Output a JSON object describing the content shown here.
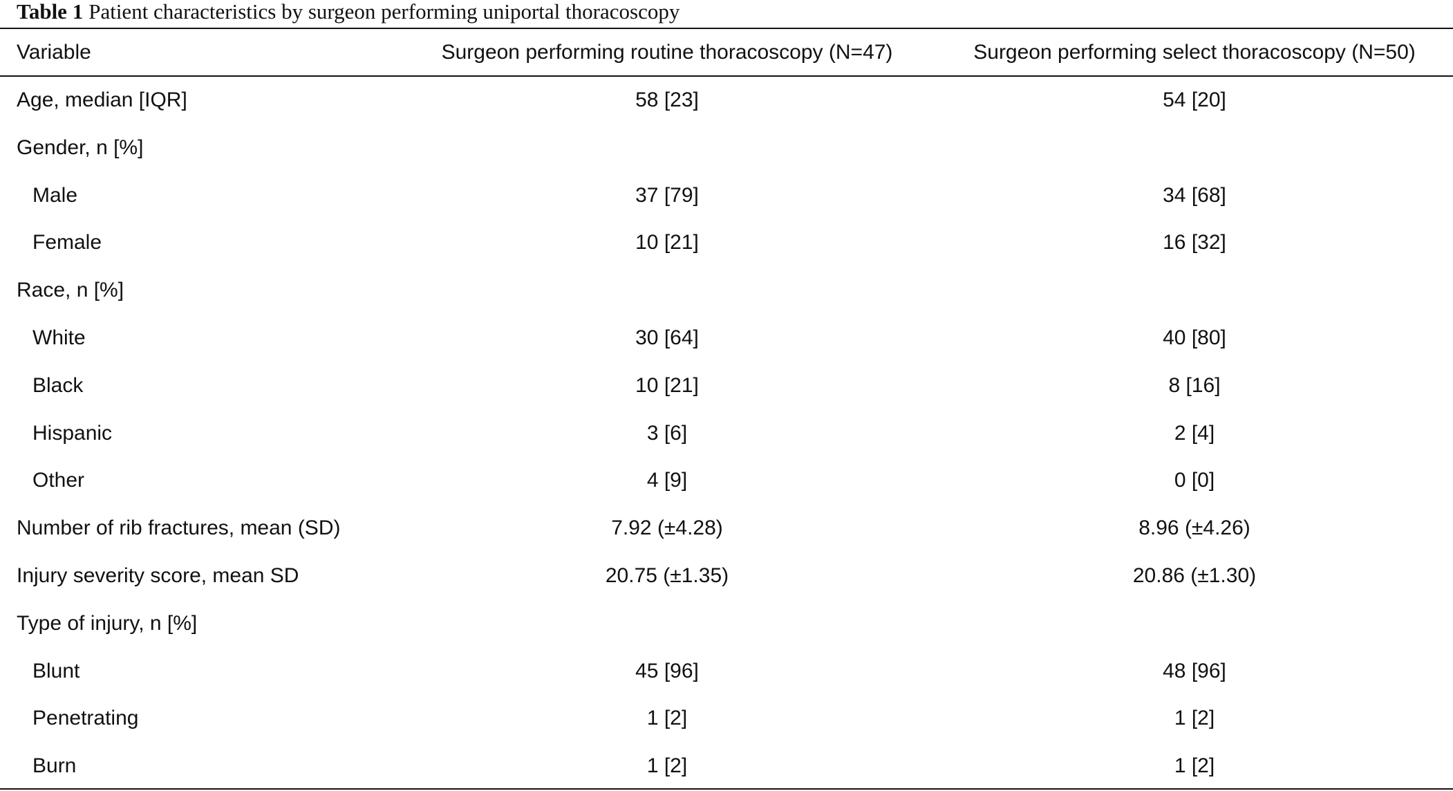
{
  "table": {
    "title_label": "Table 1",
    "title": "Patient characteristics by surgeon performing uniportal thoracoscopy",
    "columns": [
      "Variable",
      "Surgeon performing routine thoracoscopy (N=47)",
      "Surgeon performing select thoracoscopy (N=50)"
    ],
    "rows": [
      {
        "cells": [
          "Age, median [IQR]",
          "58 [23]",
          "54 [20]"
        ]
      },
      {
        "cells": [
          "Gender, n [%]"
        ]
      },
      {
        "cells": [
          "Male",
          "37 [79]",
          "34 [68]"
        ],
        "indent": true
      },
      {
        "cells": [
          "Female",
          "10 [21]",
          "16 [32]"
        ],
        "indent": true
      },
      {
        "cells": [
          "Race, n [%]"
        ]
      },
      {
        "cells": [
          "White",
          "30 [64]",
          "40 [80]"
        ],
        "indent": true
      },
      {
        "cells": [
          "Black",
          "10 [21]",
          "8 [16]"
        ],
        "indent": true
      },
      {
        "cells": [
          "Hispanic",
          "3 [6]",
          "2 [4]"
        ],
        "indent": true
      },
      {
        "cells": [
          "Other",
          "4 [9]",
          "0 [0]"
        ],
        "indent": true
      },
      {
        "cells": [
          "Number of rib fractures, mean (SD)",
          "7.92 (±4.28)",
          "8.96 (±4.26)"
        ]
      },
      {
        "cells": [
          "Injury severity score, mean SD",
          "20.75 (±1.35)",
          "20.86 (±1.30)"
        ]
      },
      {
        "cells": [
          "Type of injury, n [%]"
        ]
      },
      {
        "cells": [
          "Blunt",
          "45 [96]",
          "48 [96]"
        ],
        "indent": true
      },
      {
        "cells": [
          "Penetrating",
          "1 [2]",
          "1 [2]"
        ],
        "indent": true
      },
      {
        "cells": [
          "Burn",
          "1 [2]",
          "1 [2]"
        ],
        "indent": true
      }
    ]
  }
}
